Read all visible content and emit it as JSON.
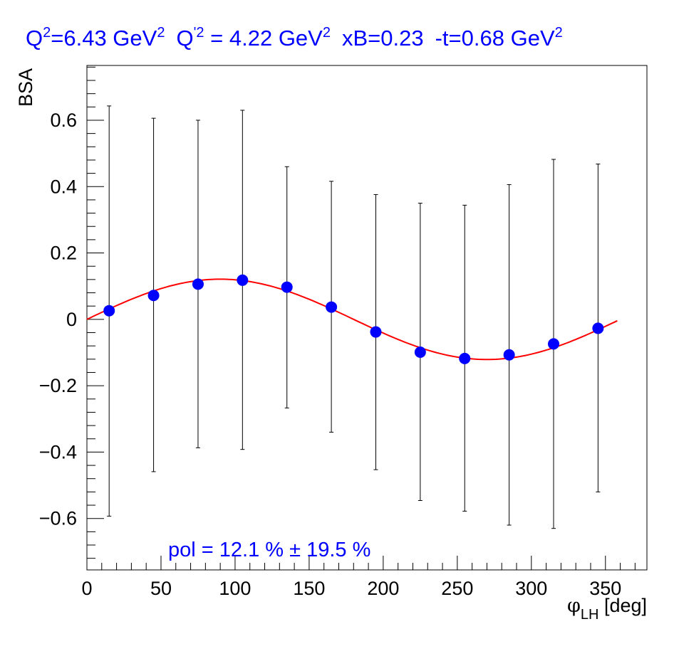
{
  "chart_data": {
    "type": "scatter",
    "title": {
      "q2_label": "Q",
      "q2_sup": "2",
      "q2_value": "=6.43 GeV",
      "q2_unit_sup": "2",
      "qp2_label": "Q",
      "qp2_sup": "'2",
      "qp2_value": " = 4.22 GeV",
      "qp2_unit_sup": "2",
      "xb": "xB=0.23",
      "t_value": "-t=0.68 GeV",
      "t_unit_sup": "2"
    },
    "xlabel": {
      "symbol": "φ",
      "sub": "LH",
      "unit": " [deg]"
    },
    "ylabel": "BSA",
    "xlim": [
      0,
      378
    ],
    "ylim": [
      -0.755,
      0.765
    ],
    "x_ticks": [
      0,
      50,
      100,
      150,
      200,
      250,
      300,
      350
    ],
    "x_tick_labels": [
      "0",
      "50",
      "100",
      "150",
      "200",
      "250",
      "300",
      "350"
    ],
    "y_ticks": [
      -0.6,
      -0.4,
      -0.2,
      0,
      0.2,
      0.4,
      0.6
    ],
    "y_tick_labels": [
      "−0.6",
      "−0.4",
      "−0.2",
      "0",
      "0.2",
      "0.4",
      "0.6"
    ],
    "series": [
      {
        "marker_color": "#0000ff",
        "x": [
          15,
          45,
          75,
          105,
          135,
          165,
          195,
          225,
          255,
          285,
          315,
          345
        ],
        "y": [
          0.026,
          0.072,
          0.106,
          0.118,
          0.097,
          0.037,
          -0.038,
          -0.099,
          -0.118,
          -0.107,
          -0.074,
          -0.027
        ],
        "y_err_low": [
          -0.593,
          -0.459,
          -0.387,
          -0.392,
          -0.267,
          -0.34,
          -0.453,
          -0.546,
          -0.578,
          -0.62,
          -0.63,
          -0.52
        ],
        "y_err_high": [
          0.643,
          0.606,
          0.6,
          0.63,
          0.46,
          0.416,
          0.376,
          0.35,
          0.344,
          0.406,
          0.482,
          0.468
        ]
      }
    ],
    "fit": {
      "color": "#ff0000",
      "amplitude": 0.121,
      "x_range": [
        0,
        358
      ]
    },
    "annotation": "pol = 12.1 % ± 19.5 %"
  }
}
